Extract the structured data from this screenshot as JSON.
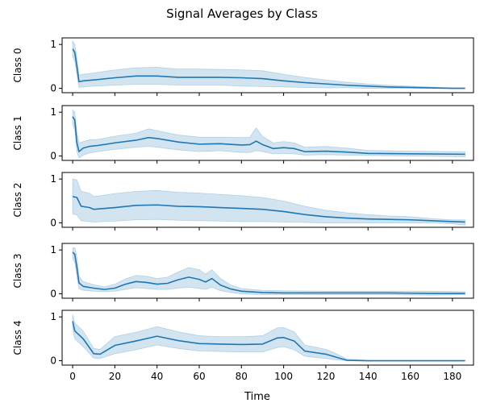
{
  "chart_data": {
    "type": "line",
    "title": "Signal Averages by Class",
    "xlabel": "Time",
    "xlim": [
      -5,
      190
    ],
    "x_ticks": [
      0,
      20,
      40,
      60,
      80,
      100,
      120,
      140,
      160,
      180
    ],
    "ylim": [
      -0.1,
      1.15
    ],
    "y_ticks": [
      0,
      1
    ],
    "line_color": "#1f77b4",
    "band_color": "#1f77b4",
    "panels": [
      {
        "ylabel": "Class 0",
        "series": [
          {
            "x": 0,
            "y": 0.9,
            "lo": 0.72,
            "hi": 1.08
          },
          {
            "x": 1,
            "y": 0.82,
            "lo": 0.62,
            "hi": 1.0
          },
          {
            "x": 2,
            "y": 0.5,
            "lo": 0.3,
            "hi": 0.7
          },
          {
            "x": 3,
            "y": 0.15,
            "lo": 0.02,
            "hi": 0.3
          },
          {
            "x": 5,
            "y": 0.17,
            "lo": 0.03,
            "hi": 0.32
          },
          {
            "x": 10,
            "y": 0.19,
            "lo": 0.05,
            "hi": 0.35
          },
          {
            "x": 20,
            "y": 0.24,
            "lo": 0.07,
            "hi": 0.42
          },
          {
            "x": 30,
            "y": 0.28,
            "lo": 0.09,
            "hi": 0.47
          },
          {
            "x": 40,
            "y": 0.28,
            "lo": 0.09,
            "hi": 0.48
          },
          {
            "x": 50,
            "y": 0.25,
            "lo": 0.07,
            "hi": 0.44
          },
          {
            "x": 60,
            "y": 0.25,
            "lo": 0.07,
            "hi": 0.44
          },
          {
            "x": 70,
            "y": 0.25,
            "lo": 0.07,
            "hi": 0.43
          },
          {
            "x": 80,
            "y": 0.24,
            "lo": 0.05,
            "hi": 0.42
          },
          {
            "x": 90,
            "y": 0.22,
            "lo": 0.04,
            "hi": 0.4
          },
          {
            "x": 100,
            "y": 0.17,
            "lo": 0.03,
            "hi": 0.32
          },
          {
            "x": 110,
            "y": 0.13,
            "lo": 0.02,
            "hi": 0.25
          },
          {
            "x": 120,
            "y": 0.1,
            "lo": 0.01,
            "hi": 0.19
          },
          {
            "x": 130,
            "y": 0.07,
            "lo": 0.01,
            "hi": 0.14
          },
          {
            "x": 140,
            "y": 0.05,
            "lo": 0.0,
            "hi": 0.1
          },
          {
            "x": 150,
            "y": 0.03,
            "lo": 0.0,
            "hi": 0.07
          },
          {
            "x": 160,
            "y": 0.02,
            "lo": 0.0,
            "hi": 0.05
          },
          {
            "x": 170,
            "y": 0.01,
            "lo": 0.0,
            "hi": 0.03
          },
          {
            "x": 180,
            "y": 0.0,
            "lo": 0.0,
            "hi": 0.01
          },
          {
            "x": 186,
            "y": 0.0,
            "lo": 0.0,
            "hi": 0.01
          }
        ]
      },
      {
        "ylabel": "Class 1",
        "series": [
          {
            "x": 0,
            "y": 0.9,
            "lo": 0.72,
            "hi": 1.05
          },
          {
            "x": 1,
            "y": 0.82,
            "lo": 0.6,
            "hi": 1.0
          },
          {
            "x": 2,
            "y": 0.3,
            "lo": 0.1,
            "hi": 0.55
          },
          {
            "x": 3,
            "y": 0.1,
            "lo": -0.05,
            "hi": 0.3
          },
          {
            "x": 5,
            "y": 0.18,
            "lo": 0.02,
            "hi": 0.33
          },
          {
            "x": 8,
            "y": 0.22,
            "lo": 0.07,
            "hi": 0.37
          },
          {
            "x": 12,
            "y": 0.24,
            "lo": 0.1,
            "hi": 0.38
          },
          {
            "x": 20,
            "y": 0.3,
            "lo": 0.15,
            "hi": 0.45
          },
          {
            "x": 30,
            "y": 0.36,
            "lo": 0.2,
            "hi": 0.52
          },
          {
            "x": 36,
            "y": 0.42,
            "lo": 0.22,
            "hi": 0.62
          },
          {
            "x": 40,
            "y": 0.4,
            "lo": 0.2,
            "hi": 0.58
          },
          {
            "x": 50,
            "y": 0.32,
            "lo": 0.14,
            "hi": 0.48
          },
          {
            "x": 60,
            "y": 0.27,
            "lo": 0.1,
            "hi": 0.43
          },
          {
            "x": 70,
            "y": 0.28,
            "lo": 0.12,
            "hi": 0.43
          },
          {
            "x": 80,
            "y": 0.25,
            "lo": 0.08,
            "hi": 0.42
          },
          {
            "x": 84,
            "y": 0.26,
            "lo": 0.08,
            "hi": 0.43
          },
          {
            "x": 87,
            "y": 0.34,
            "lo": 0.12,
            "hi": 0.64
          },
          {
            "x": 90,
            "y": 0.26,
            "lo": 0.1,
            "hi": 0.45
          },
          {
            "x": 95,
            "y": 0.17,
            "lo": 0.05,
            "hi": 0.3
          },
          {
            "x": 100,
            "y": 0.19,
            "lo": 0.06,
            "hi": 0.33
          },
          {
            "x": 105,
            "y": 0.17,
            "lo": 0.05,
            "hi": 0.3
          },
          {
            "x": 110,
            "y": 0.1,
            "lo": 0.02,
            "hi": 0.2
          },
          {
            "x": 120,
            "y": 0.11,
            "lo": 0.03,
            "hi": 0.22
          },
          {
            "x": 130,
            "y": 0.09,
            "lo": 0.02,
            "hi": 0.18
          },
          {
            "x": 140,
            "y": 0.06,
            "lo": 0.01,
            "hi": 0.13
          },
          {
            "x": 160,
            "y": 0.05,
            "lo": 0.0,
            "hi": 0.11
          },
          {
            "x": 186,
            "y": 0.04,
            "lo": -0.02,
            "hi": 0.1
          }
        ]
      },
      {
        "ylabel": "Class 2",
        "series": [
          {
            "x": 0,
            "y": 0.6,
            "lo": 0.2,
            "hi": 1.0
          },
          {
            "x": 2,
            "y": 0.58,
            "lo": 0.18,
            "hi": 0.98
          },
          {
            "x": 4,
            "y": 0.38,
            "lo": 0.05,
            "hi": 0.72
          },
          {
            "x": 8,
            "y": 0.35,
            "lo": 0.03,
            "hi": 0.68
          },
          {
            "x": 10,
            "y": 0.31,
            "lo": 0.02,
            "hi": 0.6
          },
          {
            "x": 20,
            "y": 0.35,
            "lo": 0.04,
            "hi": 0.67
          },
          {
            "x": 30,
            "y": 0.4,
            "lo": 0.07,
            "hi": 0.72
          },
          {
            "x": 40,
            "y": 0.41,
            "lo": 0.08,
            "hi": 0.74
          },
          {
            "x": 50,
            "y": 0.38,
            "lo": 0.06,
            "hi": 0.7
          },
          {
            "x": 60,
            "y": 0.37,
            "lo": 0.05,
            "hi": 0.68
          },
          {
            "x": 70,
            "y": 0.35,
            "lo": 0.04,
            "hi": 0.65
          },
          {
            "x": 80,
            "y": 0.33,
            "lo": 0.03,
            "hi": 0.62
          },
          {
            "x": 90,
            "y": 0.31,
            "lo": 0.03,
            "hi": 0.58
          },
          {
            "x": 100,
            "y": 0.26,
            "lo": 0.02,
            "hi": 0.5
          },
          {
            "x": 110,
            "y": 0.19,
            "lo": 0.01,
            "hi": 0.38
          },
          {
            "x": 120,
            "y": 0.14,
            "lo": 0.0,
            "hi": 0.29
          },
          {
            "x": 130,
            "y": 0.11,
            "lo": 0.0,
            "hi": 0.23
          },
          {
            "x": 140,
            "y": 0.09,
            "lo": 0.0,
            "hi": 0.19
          },
          {
            "x": 150,
            "y": 0.08,
            "lo": 0.0,
            "hi": 0.16
          },
          {
            "x": 160,
            "y": 0.07,
            "lo": 0.0,
            "hi": 0.14
          },
          {
            "x": 170,
            "y": 0.05,
            "lo": 0.0,
            "hi": 0.1
          },
          {
            "x": 180,
            "y": 0.03,
            "lo": -0.02,
            "hi": 0.07
          },
          {
            "x": 186,
            "y": 0.02,
            "lo": -0.05,
            "hi": 0.07
          }
        ]
      },
      {
        "ylabel": "Class 3",
        "series": [
          {
            "x": 0,
            "y": 0.95,
            "lo": 0.8,
            "hi": 1.05
          },
          {
            "x": 1,
            "y": 0.9,
            "lo": 0.72,
            "hi": 1.05
          },
          {
            "x": 2,
            "y": 0.6,
            "lo": 0.4,
            "hi": 0.85
          },
          {
            "x": 3,
            "y": 0.25,
            "lo": 0.12,
            "hi": 0.4
          },
          {
            "x": 5,
            "y": 0.17,
            "lo": 0.08,
            "hi": 0.28
          },
          {
            "x": 10,
            "y": 0.13,
            "lo": 0.06,
            "hi": 0.21
          },
          {
            "x": 15,
            "y": 0.1,
            "lo": 0.05,
            "hi": 0.16
          },
          {
            "x": 20,
            "y": 0.13,
            "lo": 0.06,
            "hi": 0.22
          },
          {
            "x": 25,
            "y": 0.22,
            "lo": 0.1,
            "hi": 0.34
          },
          {
            "x": 30,
            "y": 0.28,
            "lo": 0.14,
            "hi": 0.42
          },
          {
            "x": 35,
            "y": 0.26,
            "lo": 0.12,
            "hi": 0.4
          },
          {
            "x": 40,
            "y": 0.22,
            "lo": 0.1,
            "hi": 0.35
          },
          {
            "x": 45,
            "y": 0.24,
            "lo": 0.1,
            "hi": 0.38
          },
          {
            "x": 50,
            "y": 0.32,
            "lo": 0.13,
            "hi": 0.5
          },
          {
            "x": 55,
            "y": 0.38,
            "lo": 0.15,
            "hi": 0.6
          },
          {
            "x": 60,
            "y": 0.33,
            "lo": 0.12,
            "hi": 0.55
          },
          {
            "x": 63,
            "y": 0.27,
            "lo": 0.1,
            "hi": 0.45
          },
          {
            "x": 66,
            "y": 0.35,
            "lo": 0.15,
            "hi": 0.55
          },
          {
            "x": 70,
            "y": 0.2,
            "lo": 0.07,
            "hi": 0.35
          },
          {
            "x": 75,
            "y": 0.11,
            "lo": 0.03,
            "hi": 0.2
          },
          {
            "x": 80,
            "y": 0.06,
            "lo": 0.0,
            "hi": 0.12
          },
          {
            "x": 90,
            "y": 0.03,
            "lo": -0.02,
            "hi": 0.08
          },
          {
            "x": 100,
            "y": 0.02,
            "lo": -0.02,
            "hi": 0.07
          },
          {
            "x": 120,
            "y": 0.02,
            "lo": -0.02,
            "hi": 0.06
          },
          {
            "x": 150,
            "y": 0.02,
            "lo": -0.02,
            "hi": 0.06
          },
          {
            "x": 170,
            "y": 0.01,
            "lo": -0.03,
            "hi": 0.06
          },
          {
            "x": 186,
            "y": 0.01,
            "lo": -0.02,
            "hi": 0.05
          }
        ]
      },
      {
        "ylabel": "Class 4",
        "series": [
          {
            "x": 0,
            "y": 0.9,
            "lo": 0.72,
            "hi": 1.05
          },
          {
            "x": 1,
            "y": 0.68,
            "lo": 0.5,
            "hi": 0.86
          },
          {
            "x": 5,
            "y": 0.5,
            "lo": 0.32,
            "hi": 0.68
          },
          {
            "x": 10,
            "y": 0.16,
            "lo": 0.06,
            "hi": 0.28
          },
          {
            "x": 13,
            "y": 0.15,
            "lo": 0.05,
            "hi": 0.26
          },
          {
            "x": 20,
            "y": 0.35,
            "lo": 0.16,
            "hi": 0.55
          },
          {
            "x": 30,
            "y": 0.45,
            "lo": 0.25,
            "hi": 0.65
          },
          {
            "x": 40,
            "y": 0.56,
            "lo": 0.36,
            "hi": 0.78
          },
          {
            "x": 50,
            "y": 0.46,
            "lo": 0.28,
            "hi": 0.66
          },
          {
            "x": 60,
            "y": 0.39,
            "lo": 0.22,
            "hi": 0.57
          },
          {
            "x": 70,
            "y": 0.38,
            "lo": 0.21,
            "hi": 0.55
          },
          {
            "x": 80,
            "y": 0.37,
            "lo": 0.2,
            "hi": 0.55
          },
          {
            "x": 90,
            "y": 0.38,
            "lo": 0.2,
            "hi": 0.57
          },
          {
            "x": 97,
            "y": 0.52,
            "lo": 0.3,
            "hi": 0.75
          },
          {
            "x": 100,
            "y": 0.53,
            "lo": 0.32,
            "hi": 0.76
          },
          {
            "x": 105,
            "y": 0.45,
            "lo": 0.25,
            "hi": 0.66
          },
          {
            "x": 110,
            "y": 0.22,
            "lo": 0.1,
            "hi": 0.36
          },
          {
            "x": 120,
            "y": 0.15,
            "lo": 0.05,
            "hi": 0.26
          },
          {
            "x": 125,
            "y": 0.08,
            "lo": 0.02,
            "hi": 0.16
          },
          {
            "x": 130,
            "y": 0.01,
            "lo": 0.0,
            "hi": 0.04
          },
          {
            "x": 140,
            "y": 0.0,
            "lo": 0.0,
            "hi": 0.01
          },
          {
            "x": 160,
            "y": 0.0,
            "lo": 0.0,
            "hi": 0.01
          },
          {
            "x": 186,
            "y": 0.0,
            "lo": 0.0,
            "hi": 0.01
          }
        ]
      }
    ]
  }
}
